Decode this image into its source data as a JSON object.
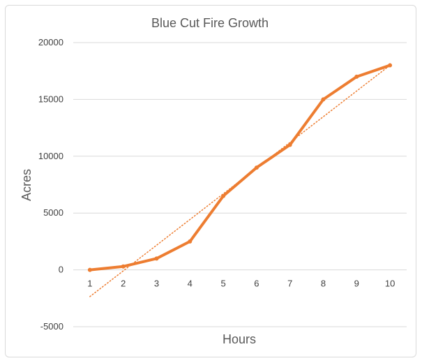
{
  "chart_data": {
    "type": "line",
    "title": "Blue Cut Fire Growth",
    "xlabel": "Hours",
    "ylabel": "Acres",
    "x": [
      1,
      2,
      3,
      4,
      5,
      6,
      7,
      8,
      9,
      10
    ],
    "series": [
      {
        "values": [
          0,
          300,
          1000,
          2500,
          6500,
          9000,
          11000,
          15000,
          17000,
          18000
        ],
        "color": "#ed7d31"
      }
    ],
    "trendline": {
      "type": "linear",
      "style": "dotted",
      "color": "#ed7d31",
      "start": [
        1,
        -2350
      ],
      "end": [
        10,
        18000
      ]
    },
    "ylim": [
      -5000,
      20000
    ],
    "yticks": [
      -5000,
      0,
      5000,
      10000,
      15000,
      20000
    ],
    "ytick_labels": [
      "-5000",
      "0",
      "5000",
      "10000",
      "15000",
      "20000"
    ],
    "xtick_labels": [
      "1",
      "2",
      "3",
      "4",
      "5",
      "6",
      "7",
      "8",
      "9",
      "10"
    ],
    "grid": "horizontal",
    "gridline_color": "#d9d9d9",
    "legend": "none"
  }
}
